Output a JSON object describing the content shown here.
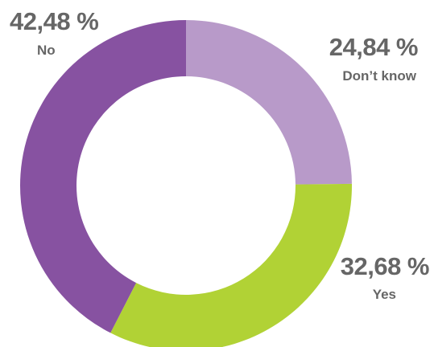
{
  "chart_data": {
    "type": "pie",
    "variant": "donut",
    "start_angle_deg": 0,
    "direction": "clockwise",
    "legend": "none",
    "slices": [
      {
        "label": "Don’t know",
        "value": 24.84,
        "display": "24,84 %",
        "color": "#b89ac9"
      },
      {
        "label": "Yes",
        "value": 32.68,
        "display": "32,68 %",
        "color": "#b1d235"
      },
      {
        "label": "No",
        "value": 42.48,
        "display": "42,48 %",
        "color": "#8752a1"
      }
    ]
  }
}
